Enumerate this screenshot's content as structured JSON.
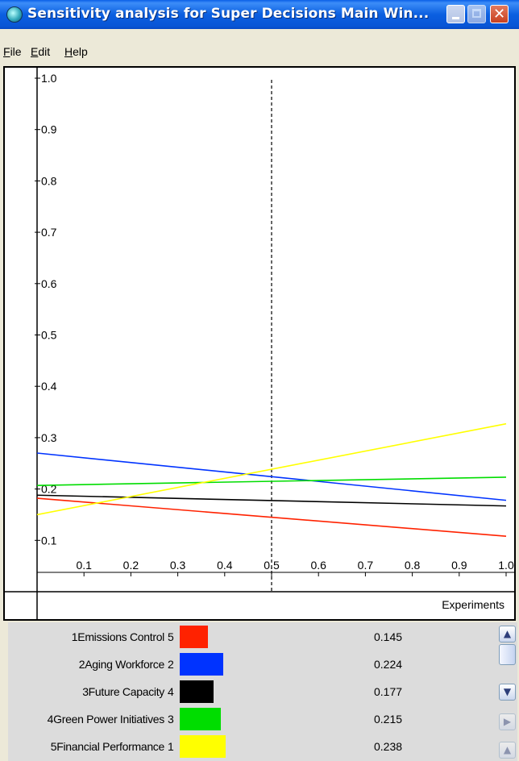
{
  "window": {
    "title": "Sensitivity analysis for Super Decisions Main Win...",
    "app_icon": "refresh-cycle-icon",
    "controls": {
      "minimize": "minimize-icon",
      "maximize": "maximize-icon",
      "close": "close-icon"
    }
  },
  "menu": {
    "items": [
      {
        "label": "File",
        "underline": "F"
      },
      {
        "label": "Edit",
        "underline": "E"
      },
      {
        "label": "Help",
        "underline": "H"
      }
    ]
  },
  "chart_data": {
    "type": "line",
    "title": "",
    "xlabel": "Experiments",
    "ylabel": "",
    "xlim": [
      0,
      1.0
    ],
    "ylim": [
      0,
      1.0
    ],
    "x_ticks": [
      "0.1",
      "0.2",
      "0.3",
      "0.4",
      "0.5",
      "0.6",
      "0.7",
      "0.8",
      "0.9",
      "1.0"
    ],
    "y_ticks": [
      "0.1",
      "0.2",
      "0.3",
      "0.4",
      "0.5",
      "0.6",
      "0.7",
      "0.8",
      "0.9",
      "1.0"
    ],
    "marker_x": 0.5,
    "series": [
      {
        "color": "#ff2200",
        "x": [
          0,
          1.0
        ],
        "y": [
          0.182,
          0.108
        ]
      },
      {
        "color": "#0033ff",
        "x": [
          0,
          1.0
        ],
        "y": [
          0.27,
          0.178
        ]
      },
      {
        "color": "#000000",
        "x": [
          0,
          1.0
        ],
        "y": [
          0.188,
          0.167
        ]
      },
      {
        "color": "#00dd00",
        "x": [
          0,
          1.0
        ],
        "y": [
          0.207,
          0.223
        ]
      },
      {
        "color": "#ffff00",
        "x": [
          0,
          1.0
        ],
        "y": [
          0.15,
          0.327
        ]
      }
    ]
  },
  "legend": {
    "rows": [
      {
        "label": "1Emissions Control",
        "rank": "5",
        "color": "#ff2200",
        "value": "0.145"
      },
      {
        "label": "2Aging Workforce",
        "rank": "2",
        "color": "#0033ff",
        "value": "0.224"
      },
      {
        "label": "3Future Capacity",
        "rank": "4",
        "color": "#000000",
        "value": "0.177"
      },
      {
        "label": "4Green Power Initiatives",
        "rank": "3",
        "color": "#00dd00",
        "value": "0.215"
      },
      {
        "label": "5Financial Performance",
        "rank": "1",
        "color": "#ffff00",
        "value": "0.238"
      }
    ],
    "scrollbar": {
      "up": "chevron-up-icon",
      "down": "chevron-down-icon",
      "right": "chevron-right-icon"
    }
  }
}
